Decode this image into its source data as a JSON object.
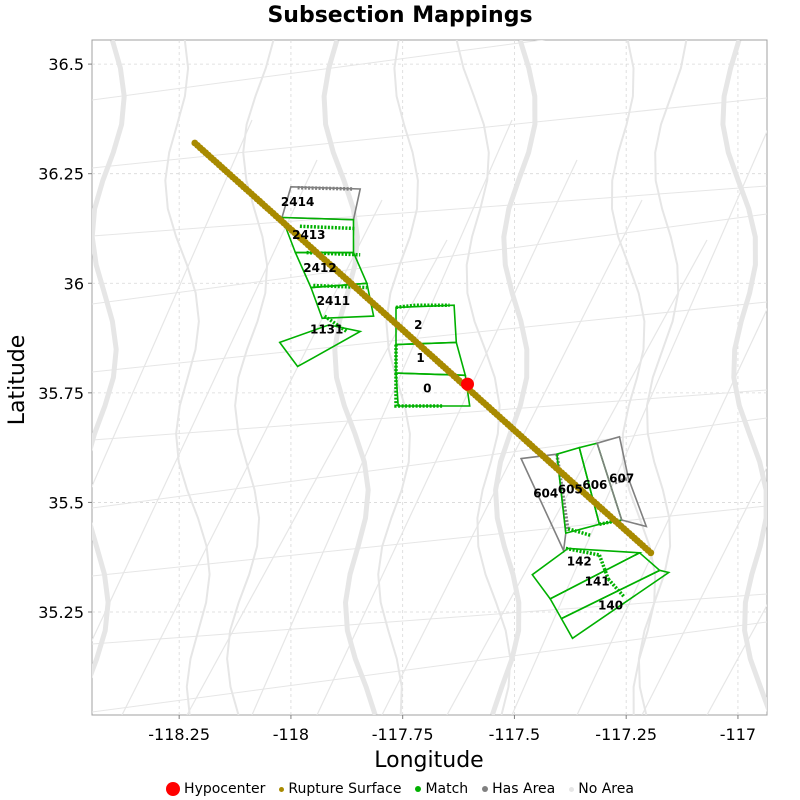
{
  "chart_data": {
    "type": "scatter",
    "title": "Subsection Mappings",
    "xlabel": "Longitude",
    "ylabel": "Latitude",
    "xlim": [
      -118.445,
      -116.935
    ],
    "ylim": [
      35.015,
      36.555
    ],
    "xticks": [
      -118.25,
      -118,
      -117.75,
      -117.5,
      -117.25,
      -117
    ],
    "xtick_labels": [
      "-118.25",
      "-118",
      "-117.75",
      "-117.5",
      "-117.25",
      "-117"
    ],
    "yticks": [
      35.25,
      35.5,
      35.75,
      36,
      36.25,
      36.5
    ],
    "ytick_labels": [
      "35.25",
      "35.5",
      "35.75",
      "36",
      "36.25",
      "36.5"
    ],
    "grid": true,
    "legend_position": "bottom",
    "colors": {
      "hypocenter": "#ff0000",
      "rupture": "#a88a00",
      "match": "#00b000",
      "has_area": "#808080",
      "no_area": "#e6e6e6"
    },
    "hypocenter": {
      "x": -117.605,
      "y": 35.77
    },
    "rupture_surface": {
      "start": [
        -118.215,
        36.32
      ],
      "end": [
        -117.195,
        35.385
      ],
      "points": 170
    },
    "legend": [
      {
        "name": "Hypocenter",
        "color": "#ff0000"
      },
      {
        "name": "Rupture Surface",
        "color": "#a88a00"
      },
      {
        "name": "Match",
        "color": "#00b000"
      },
      {
        "name": "Has Area",
        "color": "#808080"
      },
      {
        "name": "No Area",
        "color": "#e6e6e6"
      }
    ],
    "subsections": [
      {
        "label": "2414",
        "status": "has_area",
        "label_at": [
          -117.985,
          36.185
        ],
        "polygon": [
          [
            -118.0,
            36.22
          ],
          [
            -117.845,
            36.215
          ],
          [
            -117.86,
            36.145
          ],
          [
            -118.02,
            36.15
          ]
        ],
        "trace": [
          [
            -117.985,
            36.218
          ],
          [
            -117.86,
            36.215
          ]
        ]
      },
      {
        "label": "2413",
        "status": "match",
        "label_at": [
          -117.96,
          36.11
        ],
        "polygon": [
          [
            -118.02,
            36.15
          ],
          [
            -117.86,
            36.145
          ],
          [
            -117.86,
            36.07
          ],
          [
            -117.99,
            36.07
          ]
        ],
        "trace": [
          [
            -117.98,
            36.13
          ],
          [
            -117.855,
            36.125
          ]
        ]
      },
      {
        "label": "2412",
        "status": "match",
        "label_at": [
          -117.935,
          36.035
        ],
        "polygon": [
          [
            -117.99,
            36.07
          ],
          [
            -117.86,
            36.07
          ],
          [
            -117.83,
            36.0
          ],
          [
            -117.955,
            35.99
          ]
        ],
        "trace": [
          [
            -117.965,
            36.07
          ],
          [
            -117.845,
            36.065
          ]
        ]
      },
      {
        "label": "2411",
        "status": "match",
        "label_at": [
          -117.905,
          35.96
        ],
        "polygon": [
          [
            -117.955,
            35.99
          ],
          [
            -117.83,
            36.0
          ],
          [
            -117.815,
            35.925
          ],
          [
            -117.93,
            35.92
          ]
        ],
        "trace": [
          [
            -117.95,
            35.995
          ],
          [
            -117.83,
            35.99
          ]
        ]
      },
      {
        "label": "1131",
        "status": "match",
        "label_at": [
          -117.92,
          35.895
        ],
        "polygon": [
          [
            -117.915,
            35.905
          ],
          [
            -117.845,
            35.89
          ],
          [
            -117.95,
            35.83
          ],
          [
            -117.985,
            35.81
          ],
          [
            -118.025,
            35.865
          ]
        ],
        "trace": [
          [
            -117.925,
            35.925
          ],
          [
            -117.875,
            35.89
          ]
        ]
      },
      {
        "label": "2",
        "status": "match",
        "label_at": [
          -117.715,
          35.905
        ],
        "polygon": [
          [
            -117.765,
            35.945
          ],
          [
            -117.635,
            35.95
          ],
          [
            -117.63,
            35.865
          ],
          [
            -117.765,
            35.86
          ]
        ],
        "trace": [
          [
            -117.765,
            35.945
          ],
          [
            -117.72,
            35.95
          ],
          [
            -117.645,
            35.95
          ]
        ]
      },
      {
        "label": "1",
        "status": "match",
        "label_at": [
          -117.71,
          35.83
        ],
        "polygon": [
          [
            -117.765,
            35.86
          ],
          [
            -117.63,
            35.865
          ],
          [
            -117.61,
            35.79
          ],
          [
            -117.765,
            35.795
          ]
        ],
        "trace": [
          [
            -117.765,
            35.86
          ],
          [
            -117.765,
            35.795
          ]
        ]
      },
      {
        "label": "0",
        "status": "match",
        "label_at": [
          -117.695,
          35.76
        ],
        "polygon": [
          [
            -117.765,
            35.795
          ],
          [
            -117.61,
            35.79
          ],
          [
            -117.6,
            35.72
          ],
          [
            -117.76,
            35.72
          ]
        ],
        "trace": [
          [
            -117.765,
            35.795
          ],
          [
            -117.765,
            35.72
          ],
          [
            -117.66,
            35.72
          ]
        ]
      },
      {
        "label": "604",
        "status": "has_area",
        "label_at": [
          -117.43,
          35.52
        ],
        "polygon": [
          [
            -117.485,
            35.6
          ],
          [
            -117.405,
            35.61
          ],
          [
            -117.385,
            35.43
          ],
          [
            -117.39,
            35.39
          ]
        ],
        "trace": [
          [
            -117.405,
            35.61
          ],
          [
            -117.38,
            35.435
          ]
        ]
      },
      {
        "label": "605",
        "status": "match",
        "label_at": [
          -117.375,
          35.53
        ],
        "polygon": [
          [
            -117.405,
            35.61
          ],
          [
            -117.355,
            35.625
          ],
          [
            -117.31,
            35.45
          ],
          [
            -117.385,
            35.43
          ]
        ],
        "trace": [
          [
            -117.38,
            35.44
          ],
          [
            -117.33,
            35.425
          ]
        ]
      },
      {
        "label": "606",
        "status": "match",
        "label_at": [
          -117.32,
          35.54
        ],
        "polygon": [
          [
            -117.355,
            35.625
          ],
          [
            -117.315,
            35.635
          ],
          [
            -117.26,
            35.46
          ],
          [
            -117.31,
            35.45
          ]
        ],
        "trace": [
          [
            -117.31,
            35.45
          ],
          [
            -117.265,
            35.46
          ]
        ]
      },
      {
        "label": "607",
        "status": "has_area",
        "label_at": [
          -117.26,
          35.555
        ],
        "polygon": [
          [
            -117.315,
            35.635
          ],
          [
            -117.265,
            35.65
          ],
          [
            -117.245,
            35.555
          ],
          [
            -117.205,
            35.445
          ],
          [
            -117.26,
            35.46
          ]
        ],
        "trace": [
          [
            -117.275,
            35.545
          ],
          [
            -117.245,
            35.555
          ]
        ]
      },
      {
        "label": "142",
        "status": "match",
        "label_at": [
          -117.355,
          35.365
        ],
        "polygon": [
          [
            -117.46,
            35.335
          ],
          [
            -117.38,
            35.395
          ],
          [
            -117.22,
            35.385
          ],
          [
            -117.42,
            35.28
          ]
        ],
        "trace": [
          [
            -117.385,
            35.395
          ],
          [
            -117.31,
            35.38
          ]
        ]
      },
      {
        "label": "141",
        "status": "match",
        "label_at": [
          -117.315,
          35.32
        ],
        "polygon": [
          [
            -117.42,
            35.28
          ],
          [
            -117.22,
            35.385
          ],
          [
            -117.175,
            35.345
          ],
          [
            -117.395,
            35.235
          ]
        ],
        "trace": [
          [
            -117.31,
            35.38
          ],
          [
            -117.29,
            35.325
          ]
        ]
      },
      {
        "label": "140",
        "status": "match",
        "label_at": [
          -117.285,
          35.265
        ],
        "polygon": [
          [
            -117.395,
            35.235
          ],
          [
            -117.175,
            35.345
          ],
          [
            -117.155,
            35.34
          ],
          [
            -117.37,
            35.19
          ]
        ],
        "trace": [
          [
            -117.29,
            35.325
          ],
          [
            -117.255,
            35.285
          ]
        ]
      }
    ]
  }
}
